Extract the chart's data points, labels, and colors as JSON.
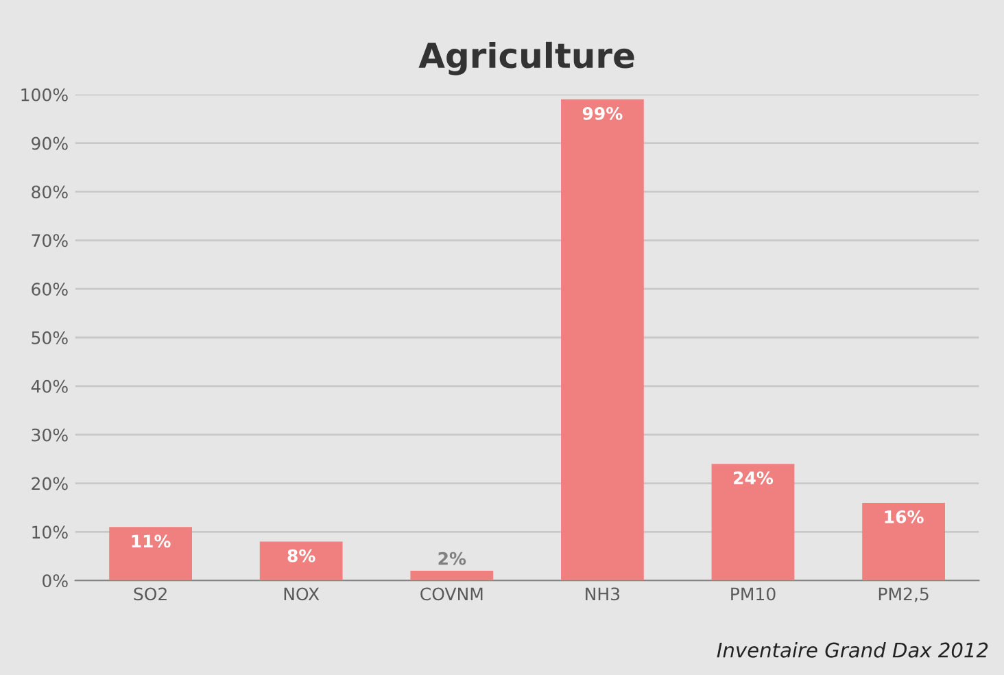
{
  "chart_data": {
    "type": "bar",
    "title": "Agriculture",
    "categories": [
      "SO2",
      "NOX",
      "COVNM",
      "NH3",
      "PM10",
      "PM2,5"
    ],
    "values": [
      11,
      8,
      2,
      99,
      24,
      16
    ],
    "value_labels": [
      "11%",
      "8%",
      "2%",
      "99%",
      "24%",
      "16%"
    ],
    "color": "#f08080",
    "ylim": [
      0,
      100
    ],
    "yticks": [
      {
        "value": 0,
        "label": "0%"
      },
      {
        "value": 10,
        "label": "10%"
      },
      {
        "value": 20,
        "label": "20%"
      },
      {
        "value": 30,
        "label": "30%"
      },
      {
        "value": 40,
        "label": "40%"
      },
      {
        "value": 50,
        "label": "50%"
      },
      {
        "value": 60,
        "label": "60%"
      },
      {
        "value": 70,
        "label": "70%"
      },
      {
        "value": 80,
        "label": "80%"
      },
      {
        "value": 90,
        "label": "90%"
      },
      {
        "value": 100,
        "label": "100%"
      }
    ],
    "grid": "y",
    "legend": false,
    "annotations": [
      "Inventaire Grand Dax 2012"
    ]
  }
}
